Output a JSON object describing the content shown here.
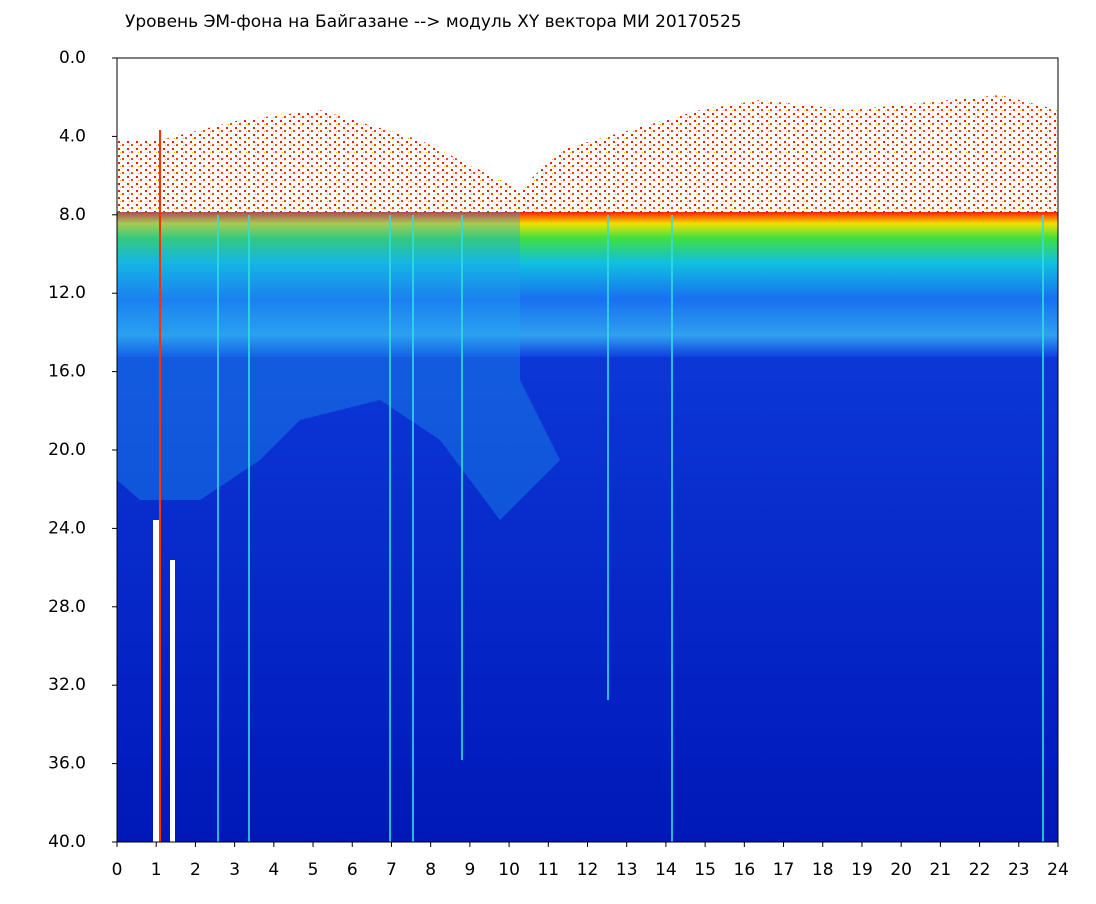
{
  "chart_data": {
    "type": "heatmap",
    "title": "Уровень ЭМ-фона на Байгазане  -->  модуль XY вектора МИ  20170525",
    "xlim": [
      0,
      24
    ],
    "xticks": [
      0,
      1,
      2,
      3,
      4,
      5,
      6,
      7,
      8,
      9,
      10,
      11,
      12,
      13,
      14,
      15,
      16,
      17,
      18,
      19,
      20,
      21,
      22,
      23,
      24
    ],
    "ylim": [
      0,
      40
    ],
    "yticks": [
      {
        "value": 0,
        "label": "0.0"
      },
      {
        "value": 4,
        "label": "4.0"
      },
      {
        "value": 8,
        "label": "8.0"
      },
      {
        "value": 12,
        "label": "12.0"
      },
      {
        "value": 16,
        "label": "16.0"
      },
      {
        "value": 20,
        "label": "20.0"
      },
      {
        "value": 24,
        "label": "24.0"
      },
      {
        "value": 28,
        "label": "28.0"
      },
      {
        "value": 32,
        "label": "32.0"
      },
      {
        "value": 36,
        "label": "36.0"
      },
      {
        "value": 40,
        "label": "40.0"
      }
    ],
    "y_inverted": true
  }
}
